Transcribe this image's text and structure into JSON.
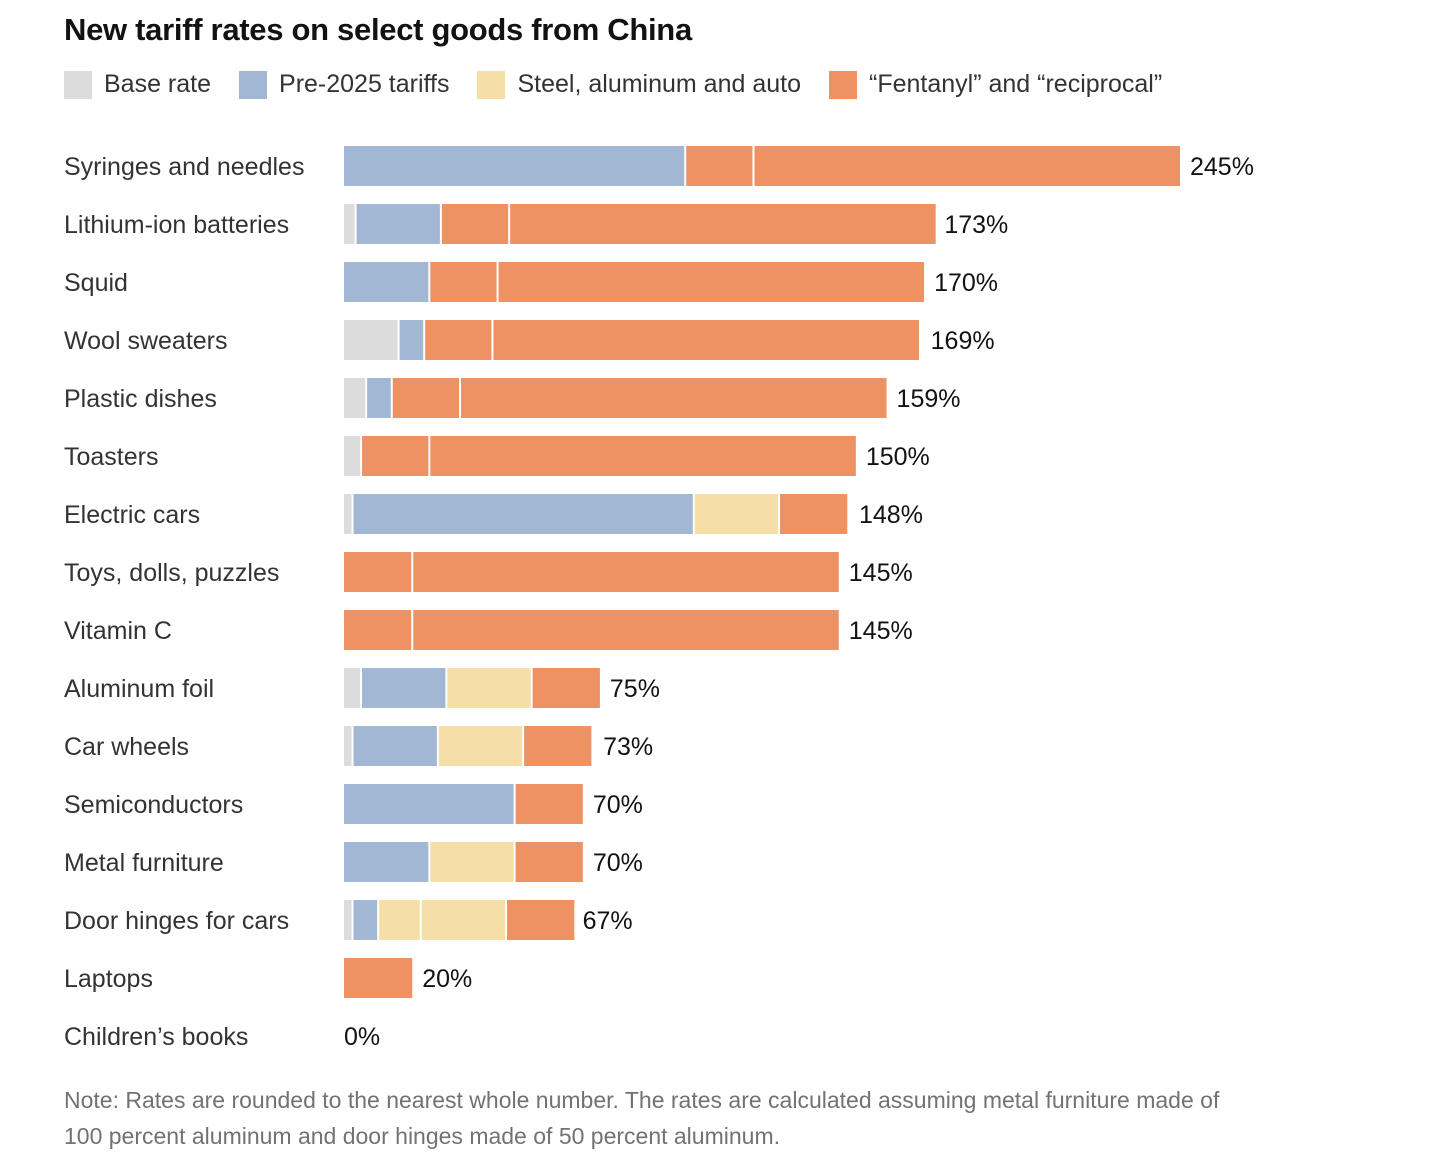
{
  "chart_data": {
    "type": "bar",
    "orientation": "horizontal",
    "stacked": true,
    "title": "New tariff rates on select goods from China",
    "legend": [
      {
        "key": "base",
        "label": "Base rate",
        "color": "#dcdcdc"
      },
      {
        "key": "pre2025",
        "label": "Pre-2025 tariffs",
        "color": "#a2b7d4"
      },
      {
        "key": "steel",
        "label": "Steel, aluminum and auto",
        "color": "#f6dfa6"
      },
      {
        "key": "fentanyl",
        "label": "“Fentanyl” and “reciprocal”",
        "color": "#ee9263"
      }
    ],
    "categories": [
      "Syringes and needles",
      "Lithium-ion batteries",
      "Squid",
      "Wool sweaters",
      "Plastic dishes",
      "Toasters",
      "Electric cars",
      "Toys, dolls, puzzles",
      "Vitamin C",
      "Aluminum foil",
      "Car wheels",
      "Semiconductors",
      "Metal furniture",
      "Door hinges for cars",
      "Laptops",
      "Children’s books"
    ],
    "totals": [
      245,
      173,
      170,
      169,
      159,
      150,
      148,
      145,
      145,
      75,
      73,
      70,
      70,
      67,
      20,
      0
    ],
    "total_labels": [
      "245%",
      "173%",
      "170%",
      "169%",
      "159%",
      "150%",
      "148%",
      "145%",
      "145%",
      "75%",
      "73%",
      "70%",
      "70%",
      "67%",
      "20%",
      "0%"
    ],
    "segments": [
      [
        {
          "k": "pre2025",
          "v": 100
        },
        {
          "k": "fentanyl",
          "v": 20
        },
        {
          "k": "fentanyl",
          "v": 125
        }
      ],
      [
        {
          "k": "base",
          "v": 3.4
        },
        {
          "k": "pre2025",
          "v": 25
        },
        {
          "k": "fentanyl",
          "v": 20
        },
        {
          "k": "fentanyl",
          "v": 125
        }
      ],
      [
        {
          "k": "pre2025",
          "v": 25
        },
        {
          "k": "fentanyl",
          "v": 20
        },
        {
          "k": "fentanyl",
          "v": 125
        }
      ],
      [
        {
          "k": "base",
          "v": 16
        },
        {
          "k": "pre2025",
          "v": 7.5
        },
        {
          "k": "fentanyl",
          "v": 20
        },
        {
          "k": "fentanyl",
          "v": 125
        }
      ],
      [
        {
          "k": "base",
          "v": 6.5
        },
        {
          "k": "pre2025",
          "v": 7.5
        },
        {
          "k": "fentanyl",
          "v": 20
        },
        {
          "k": "fentanyl",
          "v": 125
        }
      ],
      [
        {
          "k": "base",
          "v": 5
        },
        {
          "k": "fentanyl",
          "v": 20
        },
        {
          "k": "fentanyl",
          "v": 125
        }
      ],
      [
        {
          "k": "base",
          "v": 2.5
        },
        {
          "k": "pre2025",
          "v": 100
        },
        {
          "k": "steel",
          "v": 25
        },
        {
          "k": "fentanyl",
          "v": 20
        }
      ],
      [
        {
          "k": "fentanyl",
          "v": 20
        },
        {
          "k": "fentanyl",
          "v": 125
        }
      ],
      [
        {
          "k": "fentanyl",
          "v": 20
        },
        {
          "k": "fentanyl",
          "v": 125
        }
      ],
      [
        {
          "k": "base",
          "v": 5
        },
        {
          "k": "pre2025",
          "v": 25
        },
        {
          "k": "steel",
          "v": 25
        },
        {
          "k": "fentanyl",
          "v": 20
        }
      ],
      [
        {
          "k": "base",
          "v": 2.5
        },
        {
          "k": "pre2025",
          "v": 25
        },
        {
          "k": "steel",
          "v": 25
        },
        {
          "k": "fentanyl",
          "v": 20
        }
      ],
      [
        {
          "k": "pre2025",
          "v": 50
        },
        {
          "k": "fentanyl",
          "v": 20
        }
      ],
      [
        {
          "k": "pre2025",
          "v": 25
        },
        {
          "k": "steel",
          "v": 25
        },
        {
          "k": "fentanyl",
          "v": 20
        }
      ],
      [
        {
          "k": "base",
          "v": 2.5
        },
        {
          "k": "pre2025",
          "v": 7.5
        },
        {
          "k": "steel",
          "v": 12.5
        },
        {
          "k": "steel",
          "v": 25
        },
        {
          "k": "fentanyl",
          "v": 20
        }
      ],
      [
        {
          "k": "fentanyl",
          "v": 20
        }
      ],
      []
    ],
    "xlim": [
      0,
      245
    ],
    "grid": false
  },
  "note": "Note: Rates are rounded to the nearest whole number. The rates are calculated assuming metal furniture made of 100 percent aluminum and door hinges made of 50 percent aluminum."
}
